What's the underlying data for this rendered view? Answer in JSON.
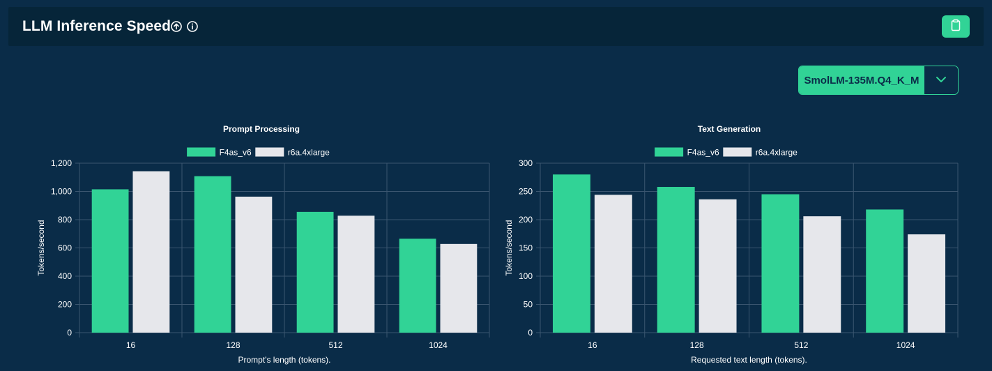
{
  "header": {
    "title": "LLM Inference Speed"
  },
  "model_select": {
    "value": "SmolLM-135M.Q4_K_M"
  },
  "colors": {
    "accent": "#31d396",
    "background": "#0a2c48",
    "header_bg": "#062539",
    "series_1": "#31d396",
    "series_2": "#e6e7eb",
    "grid": "#3b5670"
  },
  "icons": [
    "upload-icon",
    "info-icon",
    "clipboard-icon",
    "chevron-down-icon"
  ],
  "chart_data": [
    {
      "type": "bar",
      "title": "Prompt Processing",
      "xlabel": "Prompt's length (tokens).",
      "ylabel": "Tokens/second",
      "categories": [
        "16",
        "128",
        "512",
        "1024"
      ],
      "ylim": [
        0,
        1200
      ],
      "yticks": [
        0,
        200,
        400,
        600,
        800,
        1000,
        1200
      ],
      "ytick_labels": [
        "0",
        "200",
        "400",
        "600",
        "800",
        "1,000",
        "1,200"
      ],
      "legend_position": "top",
      "grid": true,
      "series": [
        {
          "name": "F4as_v6",
          "values": [
            1015,
            1108,
            855,
            665
          ]
        },
        {
          "name": "r6a.4xlarge",
          "values": [
            1143,
            963,
            828,
            628
          ]
        }
      ]
    },
    {
      "type": "bar",
      "title": "Text Generation",
      "xlabel": "Requested text length (tokens).",
      "ylabel": "Tokens/second",
      "categories": [
        "16",
        "128",
        "512",
        "1024"
      ],
      "ylim": [
        0,
        300
      ],
      "yticks": [
        0,
        50,
        100,
        150,
        200,
        250,
        300
      ],
      "ytick_labels": [
        "0",
        "50",
        "100",
        "150",
        "200",
        "250",
        "300"
      ],
      "legend_position": "top",
      "grid": true,
      "series": [
        {
          "name": "F4as_v6",
          "values": [
            280,
            258,
            245,
            218
          ]
        },
        {
          "name": "r6a.4xlarge",
          "values": [
            244,
            236,
            206,
            174
          ]
        }
      ]
    }
  ]
}
